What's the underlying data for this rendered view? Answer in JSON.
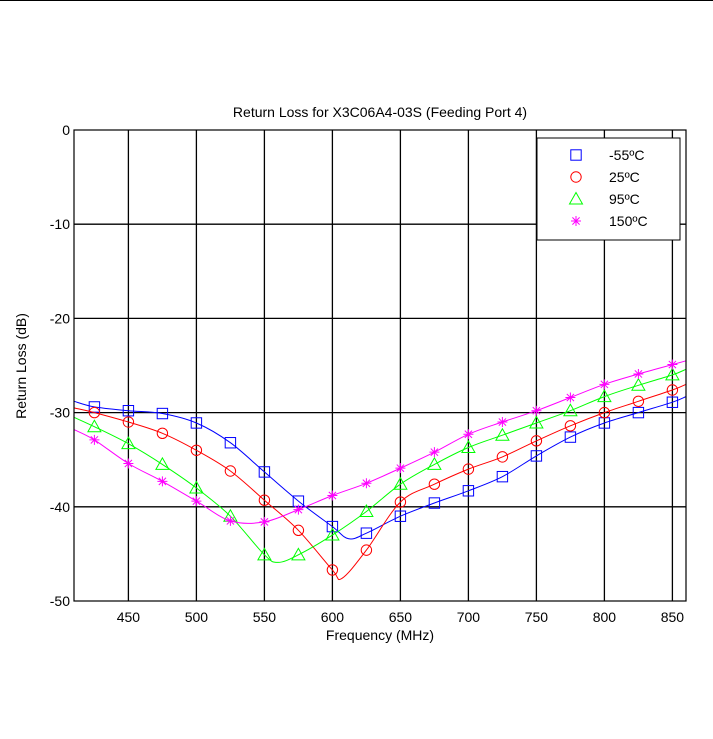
{
  "chart_data": {
    "type": "line",
    "title": "Return Loss for X3C06A4-03S (Feeding Port 4)",
    "xlabel": "Frequency (MHz)",
    "ylabel": "Return Loss (dB)",
    "xlim": [
      410,
      860
    ],
    "ylim": [
      -50,
      0
    ],
    "xticks": [
      450,
      500,
      550,
      600,
      650,
      700,
      750,
      800,
      850
    ],
    "yticks": [
      0,
      -10,
      -20,
      -30,
      -40,
      -50
    ],
    "grid": true,
    "legend_position": "top-right",
    "series": [
      {
        "name": "-55ºC",
        "color": "#0000ff",
        "marker": "square",
        "x": [
          410,
          425,
          450,
          475,
          500,
          525,
          550,
          575,
          600,
          612,
          625,
          650,
          675,
          700,
          725,
          750,
          775,
          800,
          825,
          850,
          860
        ],
        "values": [
          -28.8,
          -29.4,
          -29.8,
          -30.1,
          -31.1,
          -33.2,
          -36.3,
          -39.4,
          -42.1,
          -43.4,
          -42.8,
          -41.0,
          -39.6,
          -38.3,
          -36.8,
          -34.6,
          -32.6,
          -31.1,
          -30.0,
          -28.9,
          -28.3
        ]
      },
      {
        "name": "25ºC",
        "color": "#ff0000",
        "marker": "circle",
        "x": [
          410,
          425,
          450,
          475,
          500,
          525,
          550,
          575,
          600,
          607,
          625,
          650,
          675,
          700,
          725,
          750,
          775,
          800,
          825,
          850,
          860
        ],
        "values": [
          -29.5,
          -30.0,
          -31.0,
          -32.2,
          -34.0,
          -36.2,
          -39.3,
          -42.5,
          -46.7,
          -47.6,
          -44.6,
          -39.5,
          -37.6,
          -36.0,
          -34.7,
          -33.0,
          -31.4,
          -30.0,
          -28.8,
          -27.6,
          -27.0
        ]
      },
      {
        "name": "95ºC",
        "color": "#00ff00",
        "marker": "triangle",
        "x": [
          410,
          425,
          450,
          475,
          500,
          525,
          550,
          560,
          575,
          600,
          625,
          650,
          675,
          700,
          725,
          750,
          775,
          800,
          825,
          850,
          860
        ],
        "values": [
          -30.5,
          -31.5,
          -33.3,
          -35.5,
          -38.0,
          -41.0,
          -45.1,
          -45.9,
          -45.1,
          -43.0,
          -40.5,
          -37.6,
          -35.5,
          -33.7,
          -32.4,
          -31.1,
          -29.8,
          -28.3,
          -27.1,
          -26.0,
          -25.4
        ]
      },
      {
        "name": "150ºC",
        "color": "#ff00ff",
        "marker": "asterisk",
        "x": [
          410,
          425,
          450,
          475,
          500,
          525,
          550,
          575,
          600,
          625,
          650,
          675,
          700,
          725,
          750,
          775,
          800,
          825,
          850,
          860
        ],
        "values": [
          -31.8,
          -32.9,
          -35.4,
          -37.3,
          -39.4,
          -41.5,
          -41.6,
          -40.3,
          -38.8,
          -37.5,
          -35.9,
          -34.2,
          -32.3,
          -31.0,
          -29.8,
          -28.4,
          -27.0,
          -25.9,
          -24.9,
          -24.5
        ]
      }
    ]
  },
  "marker_x": [
    425,
    450,
    475,
    500,
    525,
    550,
    575,
    600,
    625,
    650,
    675,
    700,
    725,
    750,
    775,
    800,
    825,
    850
  ]
}
